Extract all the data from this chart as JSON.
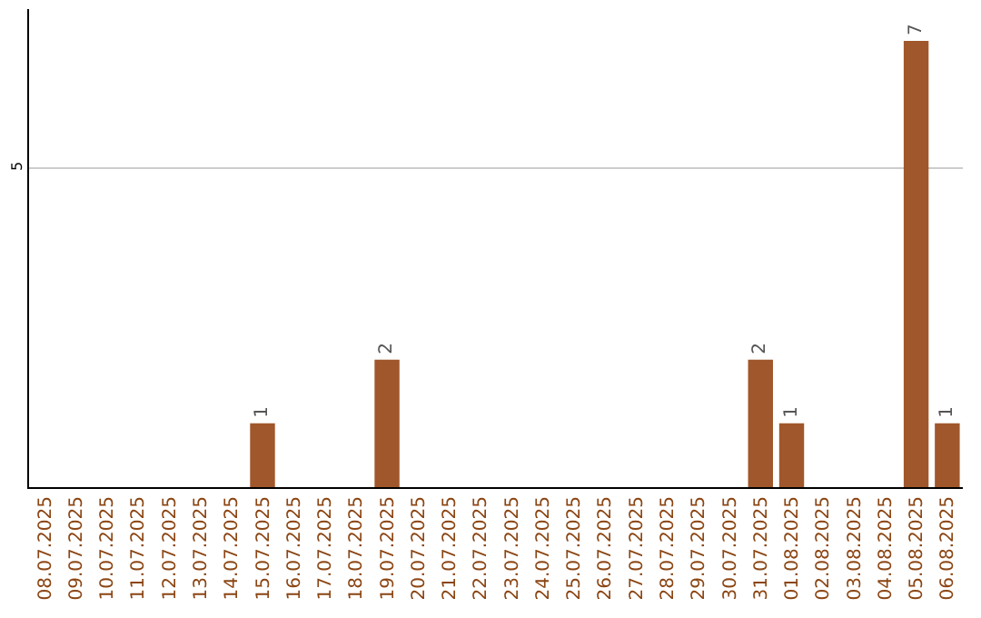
{
  "chart_data": {
    "type": "bar",
    "categories": [
      "08.07.2025",
      "09.07.2025",
      "10.07.2025",
      "11.07.2025",
      "12.07.2025",
      "13.07.2025",
      "14.07.2025",
      "15.07.2025",
      "16.07.2025",
      "17.07.2025",
      "18.07.2025",
      "19.07.2025",
      "20.07.2025",
      "21.07.2025",
      "22.07.2025",
      "23.07.2025",
      "24.07.2025",
      "25.07.2025",
      "26.07.2025",
      "27.07.2025",
      "28.07.2025",
      "29.07.2025",
      "30.07.2025",
      "31.07.2025",
      "01.08.2025",
      "02.08.2025",
      "03.08.2025",
      "04.08.2025",
      "05.08.2025",
      "06.08.2025"
    ],
    "values": [
      0,
      0,
      0,
      0,
      0,
      0,
      0,
      1,
      0,
      0,
      0,
      2,
      0,
      0,
      0,
      0,
      0,
      0,
      0,
      0,
      0,
      0,
      0,
      2,
      1,
      0,
      0,
      0,
      7,
      1
    ],
    "value_labels": [
      null,
      null,
      null,
      null,
      null,
      null,
      null,
      "1",
      null,
      null,
      null,
      "2",
      null,
      null,
      null,
      null,
      null,
      null,
      null,
      null,
      null,
      null,
      null,
      "2",
      "1",
      null,
      null,
      null,
      "7",
      "1"
    ],
    "color": "#a0572b",
    "ylim": [
      0,
      7.5
    ],
    "yticks": [
      5
    ],
    "grid": "y",
    "legend": false
  }
}
